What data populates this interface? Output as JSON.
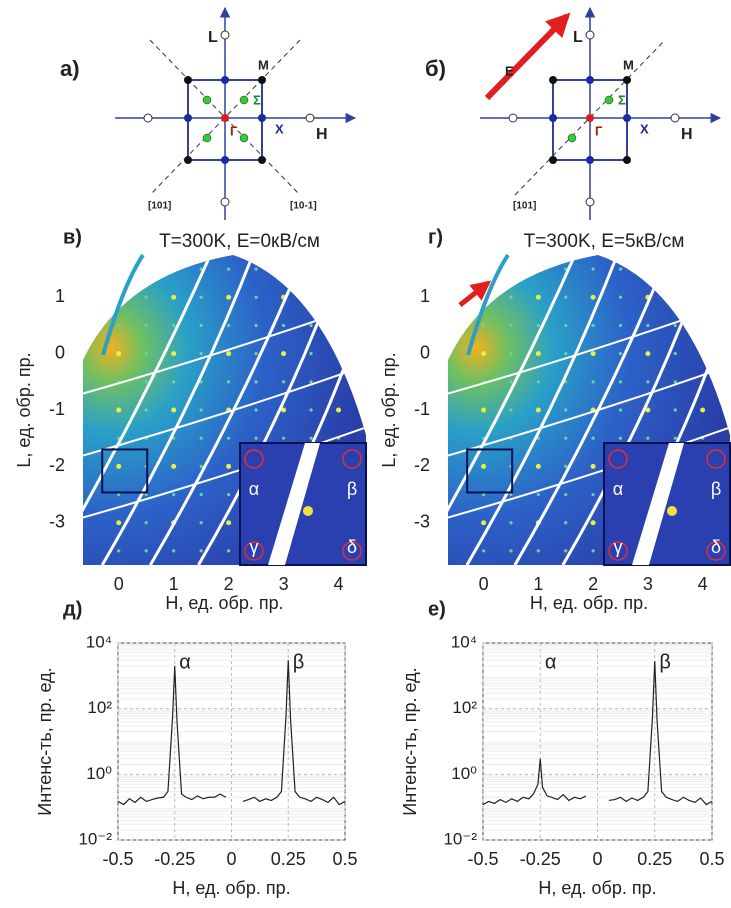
{
  "diagrams": [
    {
      "label": "а)",
      "axis_labels": [
        "L",
        "H"
      ],
      "points": [
        "M",
        "Σ",
        "Г",
        "X"
      ],
      "directions": [
        "[101]",
        "[10-1]"
      ]
    },
    {
      "label": "б)",
      "field": "E",
      "axis_labels": [
        "L",
        "H"
      ],
      "points": [
        "M",
        "Σ",
        "Г",
        "X"
      ],
      "directions": [
        "[101]"
      ]
    }
  ],
  "chart_data": [
    {
      "type": "image",
      "panel_label": "в)",
      "title": "T=300K, E=0кВ/см",
      "xlabel": "H, ед. обр. пр.",
      "ylabel": "L, ед. обр. пр.",
      "xlim": [
        -0.65,
        4.5
      ],
      "ylim": [
        -3.75,
        1.75
      ],
      "xticks": [
        0,
        1,
        2,
        3,
        4
      ],
      "yticks": [
        1,
        0,
        -1,
        -2,
        -3
      ],
      "inset_labels": [
        "α",
        "β",
        "γ",
        "δ"
      ]
    },
    {
      "type": "image",
      "panel_label": "г)",
      "title": "T=300K, E=5кВ/см",
      "xlabel": "H, ед. обр. пр.",
      "ylabel": "L, ед. обр. пр.",
      "xlim": [
        -0.65,
        4.5
      ],
      "ylim": [
        -3.75,
        1.75
      ],
      "xticks": [
        0,
        1,
        2,
        3,
        4
      ],
      "yticks": [
        1,
        0,
        -1,
        -2,
        -3
      ],
      "inset_labels": [
        "α",
        "β",
        "γ",
        "δ"
      ]
    },
    {
      "type": "line",
      "panel_label": "д)",
      "xlabel": "H, ед. обр. пр.",
      "ylabel": "Интенс-ть, пр. ед.",
      "log_y": true,
      "grid": true,
      "color": "#222222",
      "annotations": [
        "α",
        "β"
      ],
      "xlim": [
        -0.5,
        0.5
      ],
      "ylim": [
        0.01,
        10000
      ],
      "xticks": [
        -0.5,
        -0.25,
        0,
        0.25,
        0.5
      ],
      "yticks": [
        {
          "value": 0.01,
          "label": "10⁻²"
        },
        {
          "value": 1,
          "label": "10⁰"
        },
        {
          "value": 100,
          "label": "10²"
        },
        {
          "value": 10000,
          "label": "10⁴"
        }
      ],
      "x": [
        -0.5,
        -0.475,
        -0.45,
        -0.425,
        -0.4,
        -0.375,
        -0.35,
        -0.325,
        -0.3,
        -0.28,
        -0.26,
        -0.25,
        -0.24,
        -0.22,
        -0.2,
        -0.175,
        -0.15,
        -0.125,
        -0.1,
        -0.075,
        -0.05,
        -0.025,
        0,
        0.025,
        0.05,
        0.075,
        0.1,
        0.125,
        0.15,
        0.175,
        0.2,
        0.22,
        0.24,
        0.25,
        0.26,
        0.28,
        0.3,
        0.325,
        0.35,
        0.375,
        0.4,
        0.425,
        0.45,
        0.475,
        0.5
      ],
      "values": [
        0.15,
        0.12,
        0.18,
        0.14,
        0.2,
        0.15,
        0.17,
        0.19,
        0.2,
        0.3,
        50,
        2000,
        40,
        0.25,
        0.2,
        0.17,
        0.22,
        0.18,
        0.2,
        0.2,
        0.25,
        0.2,
        null,
        null,
        0.15,
        0.17,
        0.2,
        0.15,
        0.18,
        0.16,
        0.2,
        0.3,
        60,
        3000,
        50,
        0.3,
        0.2,
        0.18,
        0.15,
        0.2,
        0.17,
        0.14,
        0.2,
        0.12,
        0.15
      ]
    },
    {
      "type": "line",
      "panel_label": "е)",
      "xlabel": "H, ед. обр. пр.",
      "ylabel": "Интенс-ть, пр. ед.",
      "log_y": true,
      "grid": true,
      "color": "#222222",
      "annotations": [
        "α",
        "β"
      ],
      "xlim": [
        -0.5,
        0.5
      ],
      "ylim": [
        0.01,
        10000
      ],
      "xticks": [
        -0.5,
        -0.25,
        0,
        0.25,
        0.5
      ],
      "yticks": [
        {
          "value": 0.01,
          "label": "10⁻²"
        },
        {
          "value": 1,
          "label": "10⁰"
        },
        {
          "value": 100,
          "label": "10²"
        },
        {
          "value": 10000,
          "label": "10⁴"
        }
      ],
      "x": [
        -0.5,
        -0.475,
        -0.45,
        -0.425,
        -0.4,
        -0.375,
        -0.35,
        -0.325,
        -0.3,
        -0.28,
        -0.26,
        -0.25,
        -0.24,
        -0.22,
        -0.2,
        -0.175,
        -0.15,
        -0.125,
        -0.1,
        -0.075,
        -0.05,
        -0.025,
        0,
        0.025,
        0.05,
        0.075,
        0.1,
        0.125,
        0.15,
        0.175,
        0.2,
        0.22,
        0.24,
        0.25,
        0.26,
        0.28,
        0.3,
        0.325,
        0.35,
        0.375,
        0.4,
        0.425,
        0.45,
        0.475,
        0.5
      ],
      "values": [
        0.12,
        0.15,
        0.13,
        0.17,
        0.14,
        0.18,
        0.15,
        0.2,
        0.18,
        0.25,
        0.5,
        3,
        0.4,
        0.22,
        0.2,
        0.17,
        0.24,
        0.16,
        0.2,
        0.18,
        0.22,
        null,
        null,
        null,
        0.16,
        0.17,
        0.2,
        0.15,
        0.19,
        0.16,
        0.2,
        0.3,
        55,
        2800,
        45,
        0.3,
        0.2,
        0.17,
        0.15,
        0.2,
        0.16,
        0.14,
        0.19,
        0.12,
        0.15
      ]
    }
  ]
}
